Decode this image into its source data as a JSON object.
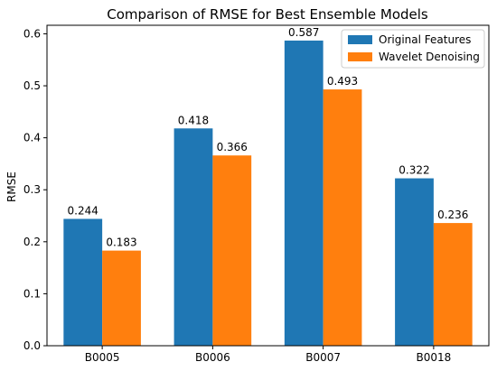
{
  "chart_data": {
    "type": "bar",
    "title": "Comparison of RMSE for Best Ensemble Models",
    "xlabel": "",
    "ylabel": "RMSE",
    "categories": [
      "B0005",
      "B0006",
      "B0007",
      "B0018"
    ],
    "series": [
      {
        "name": "Original Features",
        "color": "#1f77b4",
        "values": [
          0.244,
          0.418,
          0.587,
          0.322
        ],
        "labels": [
          "0.244",
          "0.418",
          "0.587",
          "0.322"
        ]
      },
      {
        "name": "Wavelet Denoising",
        "color": "#ff7f0e",
        "values": [
          0.183,
          0.366,
          0.493,
          0.236
        ],
        "labels": [
          "0.183",
          "0.366",
          "0.493",
          "0.236"
        ]
      }
    ],
    "ylim": [
      0,
      0.6164
    ],
    "yticks": [
      "0.0",
      "0.1",
      "0.2",
      "0.3",
      "0.4",
      "0.5",
      "0.6"
    ],
    "grid": false,
    "legend_position": "top-right"
  }
}
